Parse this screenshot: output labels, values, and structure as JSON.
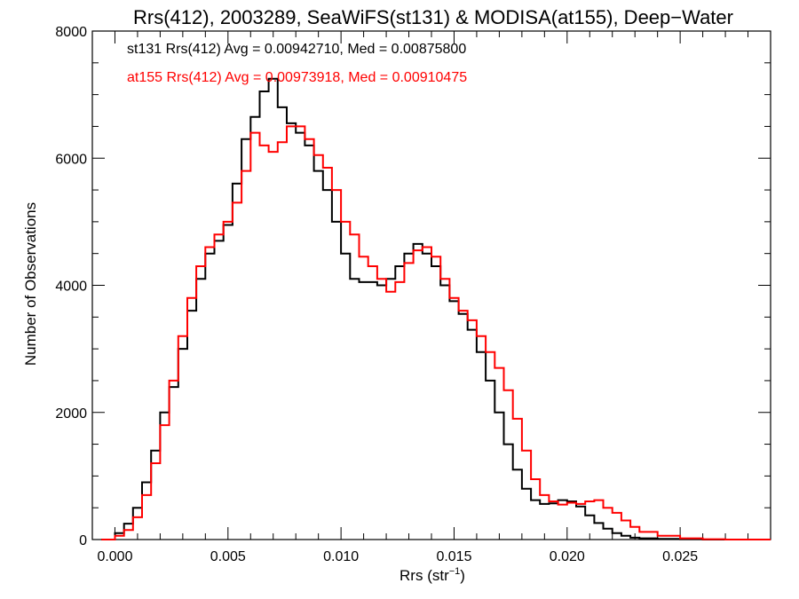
{
  "chart_data": {
    "type": "line",
    "title": "Rrs(412), 2003289, SeaWiFS(st131) & MODISA(at155), Deep−Water",
    "xlabel_main": "Rrs (str",
    "xlabel_sup": "−1",
    "xlabel_close": ")",
    "ylabel": "Number of Observations",
    "xlim": [
      -0.001,
      0.029
    ],
    "ylim": [
      0,
      8000
    ],
    "xticks": [
      0.0,
      0.005,
      0.01,
      0.015,
      0.02,
      0.025
    ],
    "xtick_labels": [
      "0.000",
      "0.005",
      "0.010",
      "0.015",
      "0.020",
      "0.025"
    ],
    "yticks": [
      0,
      2000,
      4000,
      6000,
      8000
    ],
    "ytick_labels": [
      "0",
      "2000",
      "4000",
      "6000",
      "8000"
    ],
    "x_minor_step": 0.001,
    "y_minor_step": 500,
    "legend_position": "top-left",
    "series": [
      {
        "name": "st131 Rrs(412) Avg = 0.00942710, Med = 0.00875800",
        "color": "#000000",
        "step": "histogram",
        "x": [
          -0.0006,
          0.0,
          0.0004,
          0.0008,
          0.0012,
          0.0016,
          0.002,
          0.0024,
          0.0028,
          0.0032,
          0.0036,
          0.004,
          0.0044,
          0.0048,
          0.0052,
          0.0056,
          0.006,
          0.0064,
          0.0068,
          0.0072,
          0.0076,
          0.008,
          0.0084,
          0.0088,
          0.0092,
          0.0096,
          0.01,
          0.0104,
          0.0108,
          0.0112,
          0.0116,
          0.012,
          0.0124,
          0.0128,
          0.0132,
          0.0136,
          0.014,
          0.0144,
          0.0148,
          0.0152,
          0.0156,
          0.016,
          0.0164,
          0.0168,
          0.0172,
          0.0176,
          0.018,
          0.0184,
          0.0188,
          0.0192,
          0.0196,
          0.02,
          0.0204,
          0.0208,
          0.0212,
          0.0216,
          0.022,
          0.0224,
          0.0228,
          0.0232,
          0.024,
          0.025,
          0.026,
          0.027,
          0.029
        ],
        "y": [
          0,
          100,
          250,
          500,
          900,
          1400,
          2000,
          2400,
          3000,
          3600,
          4100,
          4500,
          4700,
          4950,
          5600,
          6300,
          6650,
          7050,
          7250,
          6800,
          6550,
          6400,
          6200,
          5800,
          5500,
          5000,
          4500,
          4100,
          4050,
          4050,
          4000,
          4100,
          4300,
          4500,
          4650,
          4500,
          4300,
          4000,
          3750,
          3550,
          3300,
          2950,
          2500,
          2000,
          1500,
          1100,
          800,
          620,
          560,
          570,
          620,
          600,
          520,
          380,
          260,
          170,
          100,
          60,
          30,
          20,
          10,
          5,
          0,
          0,
          0
        ]
      },
      {
        "name": "at155 Rrs(412) Avg = 0.00973918, Med = 0.00910475",
        "color": "#ff0000",
        "step": "histogram",
        "x": [
          -0.0006,
          0.0,
          0.0004,
          0.0008,
          0.0012,
          0.0016,
          0.002,
          0.0024,
          0.0028,
          0.0032,
          0.0036,
          0.004,
          0.0044,
          0.0048,
          0.0052,
          0.0056,
          0.006,
          0.0064,
          0.0068,
          0.0072,
          0.0076,
          0.008,
          0.0084,
          0.0088,
          0.0092,
          0.0096,
          0.01,
          0.0104,
          0.0108,
          0.0112,
          0.0116,
          0.012,
          0.0124,
          0.0128,
          0.0132,
          0.0136,
          0.014,
          0.0144,
          0.0148,
          0.0152,
          0.0156,
          0.016,
          0.0164,
          0.0168,
          0.0172,
          0.0176,
          0.018,
          0.0184,
          0.0188,
          0.0192,
          0.0196,
          0.02,
          0.0204,
          0.0208,
          0.0212,
          0.0216,
          0.022,
          0.0224,
          0.0228,
          0.0232,
          0.024,
          0.025,
          0.026,
          0.027,
          0.029
        ],
        "y": [
          0,
          60,
          150,
          350,
          700,
          1200,
          1800,
          2500,
          3200,
          3800,
          4300,
          4600,
          4800,
          5000,
          5300,
          5800,
          6400,
          6200,
          6100,
          6250,
          6500,
          6500,
          6300,
          6050,
          5850,
          5500,
          5000,
          4800,
          4450,
          4300,
          4100,
          3900,
          4050,
          4350,
          4550,
          4600,
          4450,
          4100,
          3800,
          3600,
          3450,
          3200,
          2950,
          2700,
          2350,
          1900,
          1400,
          950,
          700,
          600,
          550,
          580,
          560,
          600,
          620,
          500,
          420,
          300,
          200,
          120,
          60,
          20,
          5,
          0,
          0
        ]
      }
    ]
  }
}
